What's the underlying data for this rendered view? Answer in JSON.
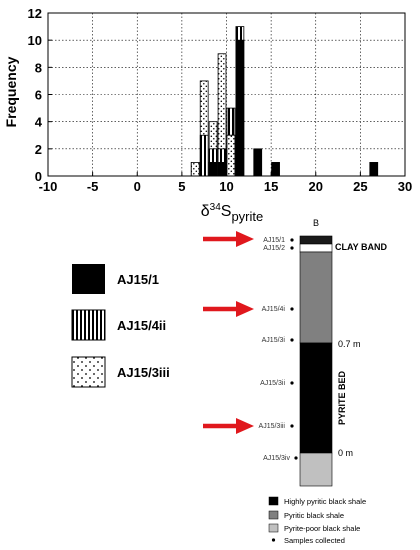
{
  "chart_data": {
    "type": "bar",
    "title": "",
    "ylabel": "Frequency",
    "xlabel_main": "δ",
    "xlabel_sup": "34",
    "xlabel_base": "S",
    "xlabel_sub": "pyrite",
    "xlim": [
      -10,
      30
    ],
    "ylim": [
      0,
      12
    ],
    "x_ticks": [
      -10,
      -5,
      0,
      5,
      10,
      15,
      20,
      25,
      30
    ],
    "y_ticks": [
      0,
      2,
      4,
      6,
      8,
      10,
      12
    ],
    "grid": true,
    "bin_width": 1,
    "series": [
      {
        "name": "AJ15/1",
        "pattern": "solid-black",
        "bins": [
          [
            6,
            1
          ],
          [
            8,
            1
          ],
          [
            9,
            1
          ],
          [
            10,
            3
          ],
          [
            11,
            10
          ],
          [
            13,
            2
          ],
          [
            15,
            1
          ],
          [
            26,
            1
          ]
        ]
      },
      {
        "name": "AJ15/4ii",
        "pattern": "vertical-stripes",
        "bins": [
          [
            6,
            1
          ],
          [
            7,
            3
          ],
          [
            8,
            2
          ],
          [
            9,
            2
          ],
          [
            10,
            5
          ],
          [
            11,
            11
          ]
        ]
      },
      {
        "name": "AJ15/3iii",
        "pattern": "dots",
        "bins": [
          [
            6,
            1
          ],
          [
            7,
            7
          ],
          [
            8,
            4
          ],
          [
            9,
            9
          ],
          [
            10,
            3
          ]
        ]
      }
    ]
  },
  "legend": [
    {
      "label": "AJ15/1",
      "swatch": "solid-black"
    },
    {
      "label": "AJ15/4ii",
      "swatch": "vertical-stripes"
    },
    {
      "label": "AJ15/3iii",
      "swatch": "dots"
    }
  ],
  "section": {
    "title": "B",
    "samples": [
      "AJ15/1",
      "AJ15/2",
      "AJ15/4i",
      "AJ15/3i",
      "AJ15/3ii",
      "AJ15/3iii",
      "AJ15/3iv"
    ],
    "arrow_targets": [
      "AJ15/1",
      "AJ15/4i",
      "AJ15/3iii"
    ],
    "clay_band_label": "CLAY BAND",
    "pyrite_bed_label": "PYRITE BED",
    "depth_top": "0.7 m",
    "depth_bottom": "0 m",
    "key": [
      {
        "label": "Highly pyritic black shale",
        "color": "#000000"
      },
      {
        "label": "Pyritic black shale",
        "color": "#808080"
      },
      {
        "label": "Pyrite-poor black shale",
        "color": "#c0c0c0"
      },
      {
        "label": "Samples collected",
        "marker": "dot"
      }
    ]
  }
}
